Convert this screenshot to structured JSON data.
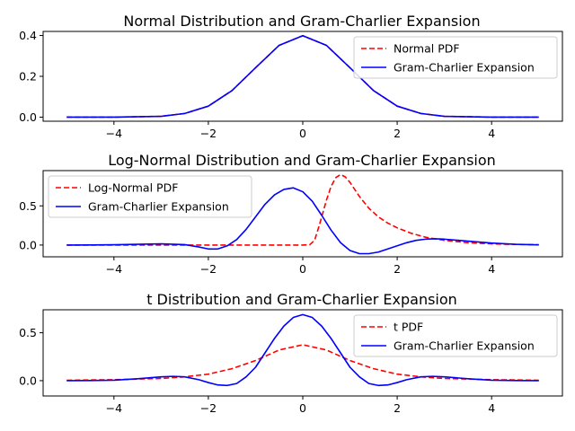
{
  "figure": {
    "background": "#ffffff"
  },
  "chart_data": [
    {
      "type": "line",
      "title": "Normal Distribution and Gram-Charlier Expansion",
      "xlabel": "",
      "ylabel": "",
      "xlim": [
        -5.5,
        5.5
      ],
      "ylim": [
        -0.02,
        0.42
      ],
      "xticks": [
        -4,
        -2,
        0,
        2,
        4
      ],
      "xtick_labels": [
        "−4",
        "−2",
        "0",
        "2",
        "4"
      ],
      "yticks": [
        0.0,
        0.2,
        0.4
      ],
      "ytick_labels": [
        "0.0",
        "0.2",
        "0.4"
      ],
      "grid": false,
      "legend_position": "upper-right",
      "series": [
        {
          "name": "Normal PDF",
          "color": "#ff0000",
          "style": "dashed",
          "x": [
            -5,
            -4,
            -3,
            -2.5,
            -2,
            -1.5,
            -1,
            -0.5,
            0,
            0.5,
            1,
            1.5,
            2,
            2.5,
            3,
            4,
            5
          ],
          "y": [
            0,
            0.0001,
            0.004,
            0.018,
            0.054,
            0.13,
            0.242,
            0.352,
            0.399,
            0.352,
            0.242,
            0.13,
            0.054,
            0.018,
            0.004,
            0.0001,
            0
          ]
        },
        {
          "name": "Gram-Charlier Expansion",
          "color": "#0000ff",
          "style": "solid",
          "x": [
            -5,
            -4,
            -3,
            -2.5,
            -2,
            -1.5,
            -1,
            -0.5,
            0,
            0.5,
            1,
            1.5,
            2,
            2.5,
            3,
            4,
            5
          ],
          "y": [
            0,
            0.0001,
            0.004,
            0.018,
            0.054,
            0.13,
            0.242,
            0.352,
            0.399,
            0.352,
            0.242,
            0.13,
            0.054,
            0.018,
            0.004,
            0.0001,
            0
          ]
        }
      ]
    },
    {
      "type": "line",
      "title": "Log-Normal Distribution and Gram-Charlier Expansion",
      "xlabel": "",
      "ylabel": "",
      "xlim": [
        -5.5,
        5.5
      ],
      "ylim": [
        -0.15,
        0.95
      ],
      "xticks": [
        -4,
        -2,
        0,
        2,
        4
      ],
      "xtick_labels": [
        "−4",
        "−2",
        "0",
        "2",
        "4"
      ],
      "yticks": [
        0.0,
        0.5
      ],
      "ytick_labels": [
        "0.0",
        "0.5"
      ],
      "grid": false,
      "legend_position": "upper-left",
      "series": [
        {
          "name": "Log-Normal PDF",
          "color": "#ff0000",
          "style": "dashed",
          "x": [
            -5,
            -2,
            0,
            0.15,
            0.25,
            0.35,
            0.5,
            0.6,
            0.7,
            0.8,
            0.9,
            1.0,
            1.2,
            1.4,
            1.6,
            1.8,
            2.0,
            2.3,
            2.6,
            3.0,
            3.5,
            4.0,
            4.5,
            5.0
          ],
          "y": [
            0,
            0,
            0,
            0.005,
            0.06,
            0.25,
            0.57,
            0.75,
            0.86,
            0.9,
            0.87,
            0.8,
            0.62,
            0.47,
            0.36,
            0.28,
            0.22,
            0.15,
            0.1,
            0.06,
            0.03,
            0.015,
            0.008,
            0.004
          ]
        },
        {
          "name": "Gram-Charlier Expansion",
          "color": "#0000ff",
          "style": "solid",
          "x": [
            -5,
            -4.5,
            -4,
            -3.5,
            -3,
            -2.5,
            -2.2,
            -2,
            -1.8,
            -1.6,
            -1.4,
            -1.2,
            -1,
            -0.8,
            -0.6,
            -0.4,
            -0.2,
            0,
            0.2,
            0.4,
            0.6,
            0.8,
            1.0,
            1.2,
            1.4,
            1.6,
            1.8,
            2.0,
            2.2,
            2.4,
            2.6,
            2.8,
            3.0,
            3.5,
            4.0,
            4.5,
            5.0
          ],
          "y": [
            0,
            0.001,
            0.004,
            0.01,
            0.015,
            0.005,
            -0.025,
            -0.05,
            -0.05,
            -0.01,
            0.07,
            0.2,
            0.36,
            0.52,
            0.64,
            0.71,
            0.73,
            0.68,
            0.56,
            0.38,
            0.19,
            0.03,
            -0.07,
            -0.11,
            -0.11,
            -0.09,
            -0.05,
            -0.01,
            0.03,
            0.06,
            0.075,
            0.08,
            0.075,
            0.05,
            0.025,
            0.01,
            0.002
          ]
        }
      ]
    },
    {
      "type": "line",
      "title": "t Distribution and Gram-Charlier Expansion",
      "xlabel": "",
      "ylabel": "",
      "xlim": [
        -5.5,
        5.5
      ],
      "ylim": [
        -0.16,
        0.74
      ],
      "xticks": [
        -4,
        -2,
        0,
        2,
        4
      ],
      "xtick_labels": [
        "−4",
        "−2",
        "0",
        "2",
        "4"
      ],
      "yticks": [
        0.0,
        0.5
      ],
      "ytick_labels": [
        "0.0",
        "0.5"
      ],
      "grid": false,
      "legend_position": "upper-right",
      "series": [
        {
          "name": "t PDF",
          "color": "#ff0000",
          "style": "dashed",
          "x": [
            -5,
            -4,
            -3,
            -2.5,
            -2,
            -1.5,
            -1,
            -0.5,
            0,
            0.5,
            1,
            1.5,
            2,
            2.5,
            3,
            4,
            5
          ],
          "y": [
            0.004,
            0.01,
            0.023,
            0.04,
            0.068,
            0.125,
            0.21,
            0.32,
            0.375,
            0.32,
            0.21,
            0.125,
            0.068,
            0.04,
            0.023,
            0.01,
            0.004
          ]
        },
        {
          "name": "Gram-Charlier Expansion",
          "color": "#0000ff",
          "style": "solid",
          "x": [
            -5,
            -4.5,
            -4,
            -3.5,
            -3,
            -2.75,
            -2.5,
            -2.2,
            -2,
            -1.8,
            -1.6,
            -1.4,
            -1.2,
            -1,
            -0.8,
            -0.6,
            -0.4,
            -0.2,
            0,
            0.2,
            0.4,
            0.6,
            0.8,
            1,
            1.2,
            1.4,
            1.6,
            1.8,
            2,
            2.2,
            2.5,
            2.75,
            3,
            3.5,
            4,
            4.5,
            5
          ],
          "y": [
            0,
            0.001,
            0.005,
            0.02,
            0.04,
            0.045,
            0.04,
            0.01,
            -0.02,
            -0.045,
            -0.05,
            -0.03,
            0.04,
            0.14,
            0.29,
            0.44,
            0.57,
            0.66,
            0.69,
            0.66,
            0.57,
            0.44,
            0.29,
            0.14,
            0.04,
            -0.03,
            -0.05,
            -0.045,
            -0.02,
            0.01,
            0.04,
            0.045,
            0.04,
            0.02,
            0.005,
            0.001,
            0
          ]
        }
      ]
    }
  ]
}
